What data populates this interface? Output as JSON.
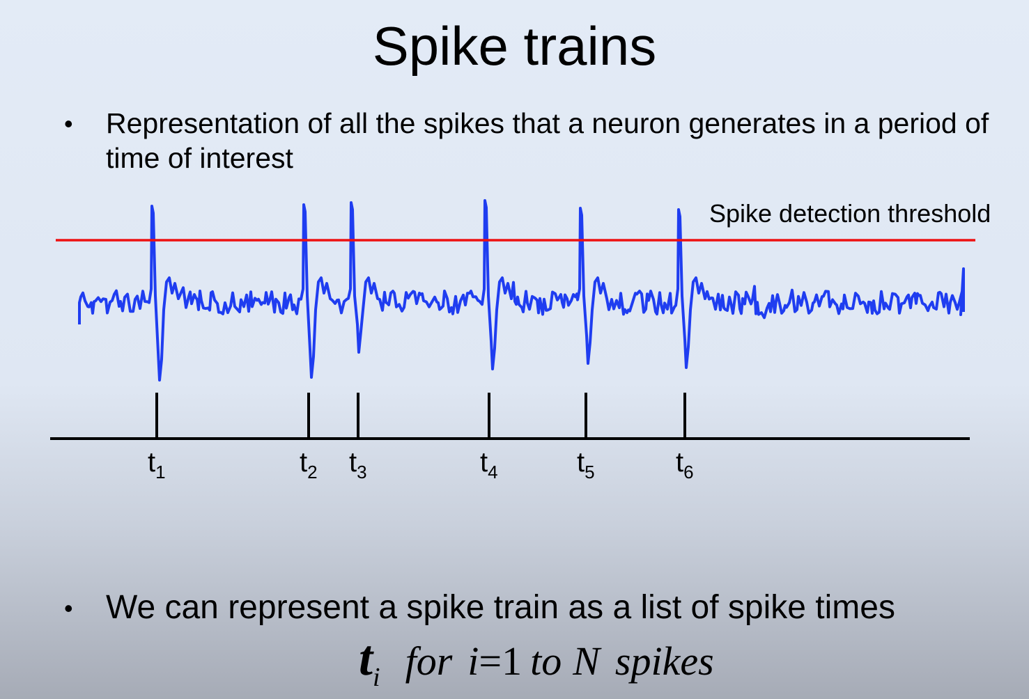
{
  "slide": {
    "title": "Spike trains",
    "bullet_1": "Representation of all the spikes that a neuron generates in a period of time of interest",
    "bullet_2": "We can represent a spike train as a list of spike times",
    "bullet_symbol": "•"
  },
  "diagram": {
    "threshold_label": "Spike detection threshold",
    "colors": {
      "trace": "#1f3df0",
      "threshold": "#ee1111",
      "raster": "#000000"
    },
    "spikes": [
      {
        "label": "t",
        "index": "1"
      },
      {
        "label": "t",
        "index": "2"
      },
      {
        "label": "t",
        "index": "3"
      },
      {
        "label": "t",
        "index": "4"
      },
      {
        "label": "t",
        "index": "5"
      },
      {
        "label": "t",
        "index": "6"
      }
    ]
  },
  "formula": {
    "symbol": "t",
    "subscript": "i",
    "for": "for",
    "lhs": "i",
    "equals": "=",
    "start": "1",
    "to": "to",
    "n": "N",
    "unit": "spikes"
  }
}
